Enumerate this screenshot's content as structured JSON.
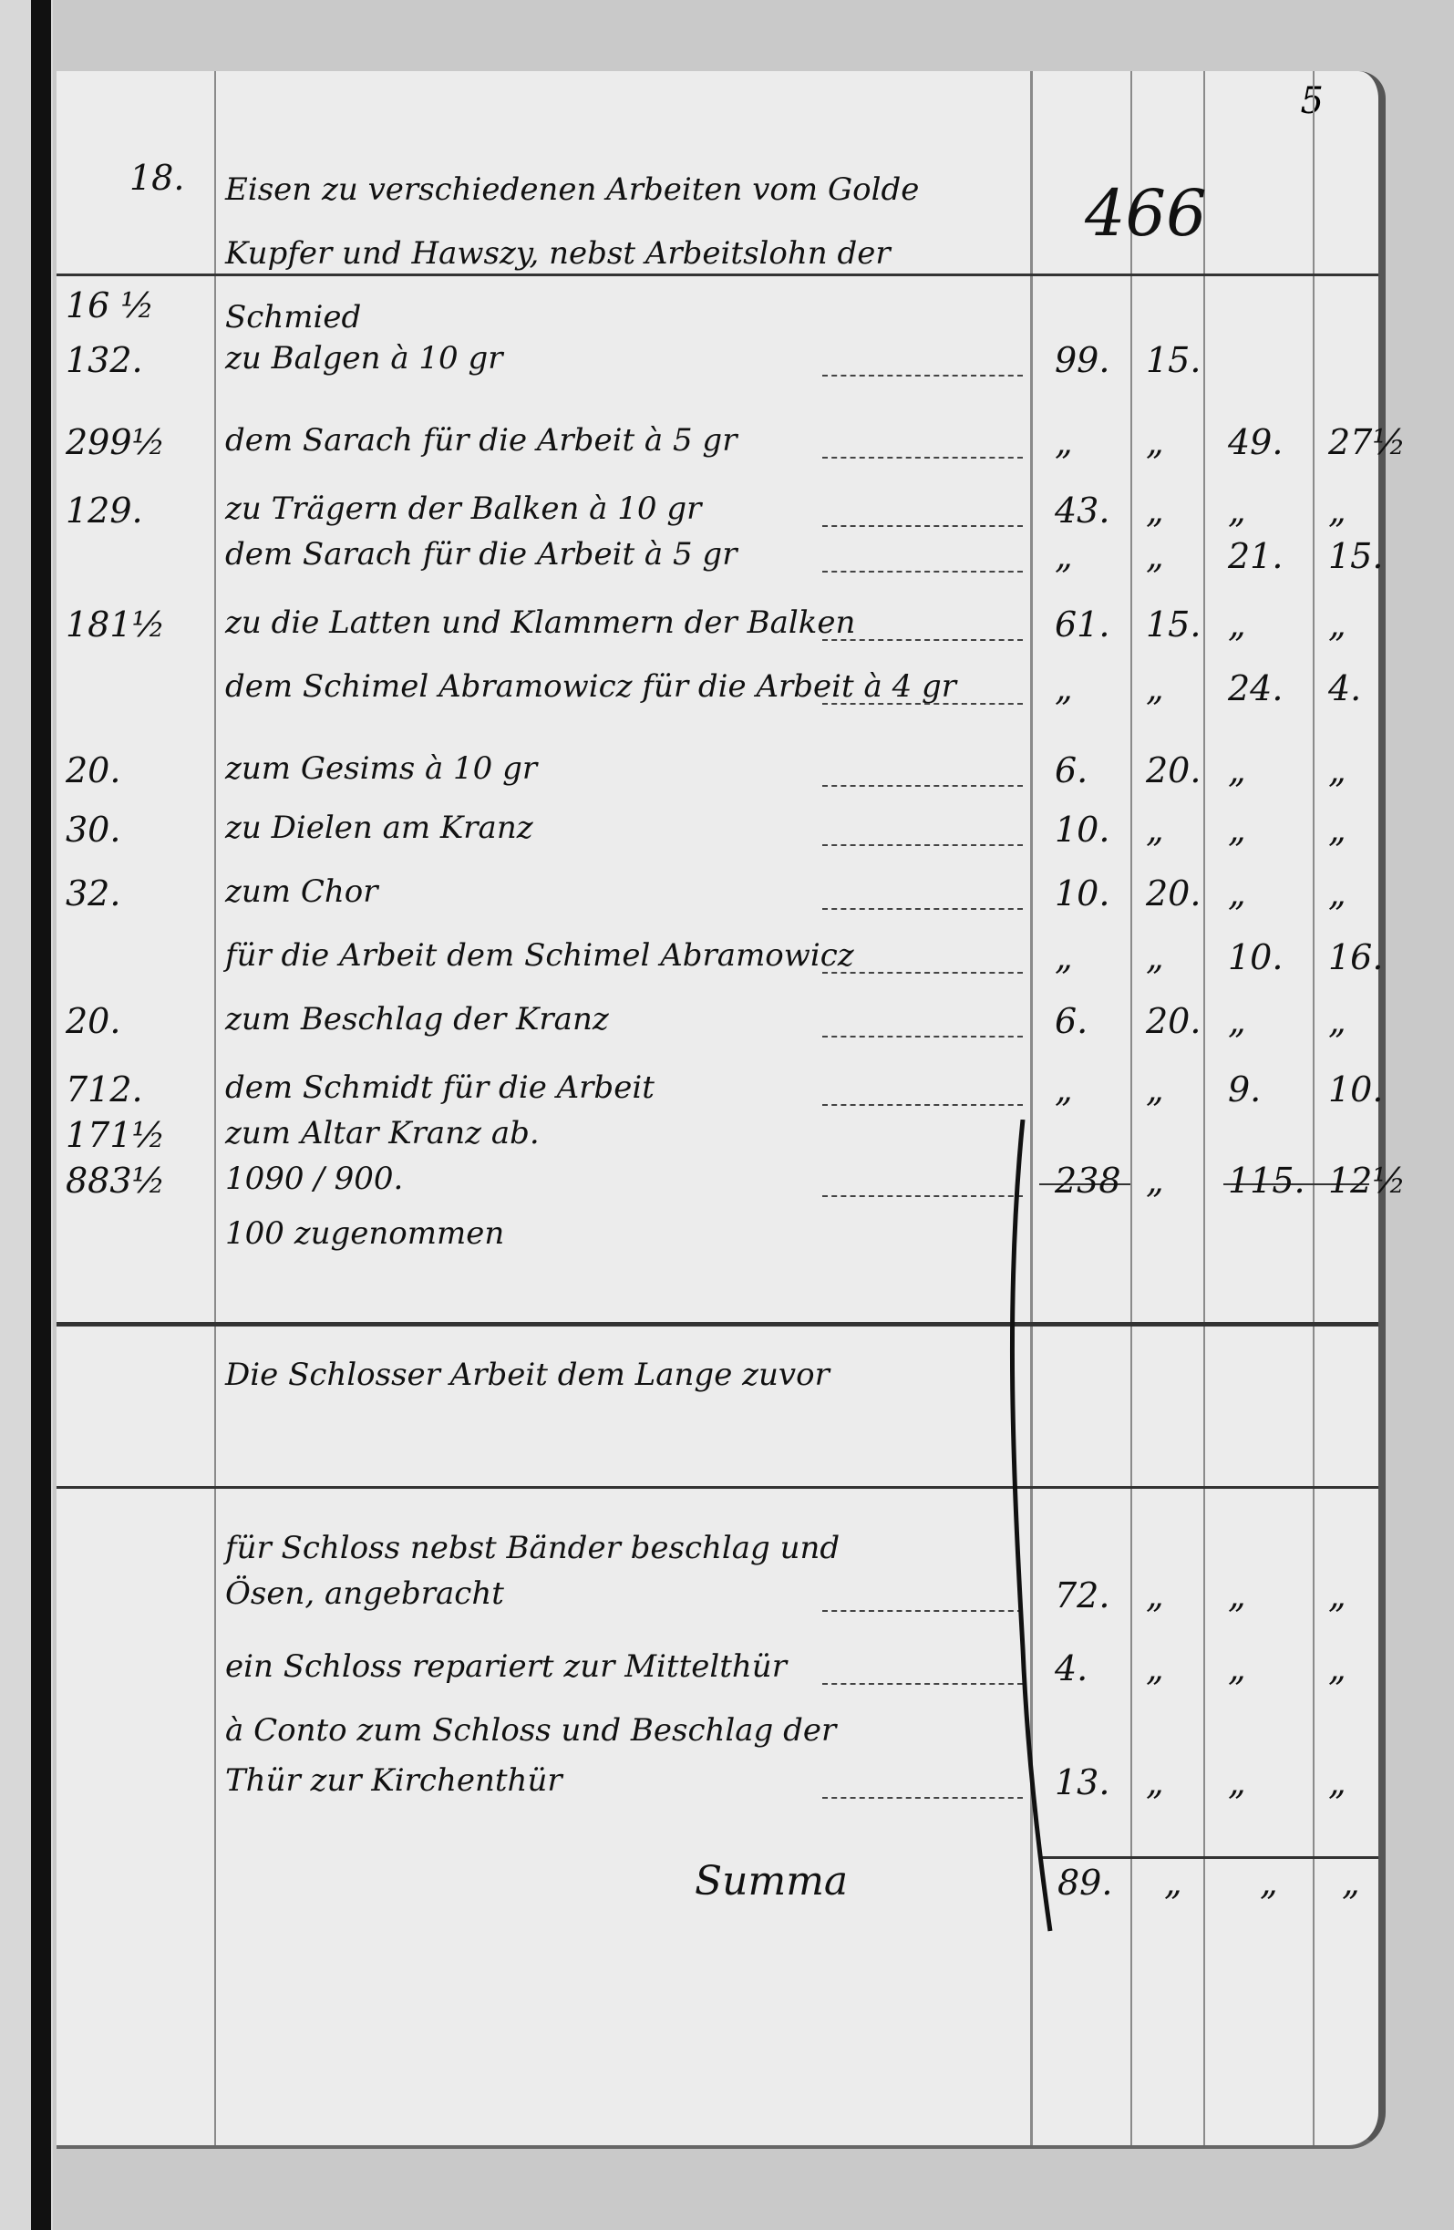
{
  "page_number": "5",
  "header": {
    "qty": "18.",
    "description": "Eisen zu verschiedenen Arbeiten vom Golde Kupfer und Hawszy, nebst Arbeitslohn der Schmied",
    "amount": "466"
  },
  "rows": [
    {
      "qty": "16 ½",
      "desc": "",
      "c1": "",
      "c2": "",
      "c3": "",
      "c4": ""
    },
    {
      "qty": "132.",
      "desc": "zu Balgen à 10 gr",
      "c1": "99.",
      "c2": "15.",
      "c3": "",
      "c4": ""
    },
    {
      "qty": "299½",
      "desc": "dem Sarach für die Arbeit à 5 gr",
      "c1": "„",
      "c2": "„",
      "c3": "49.",
      "c4": "27½"
    },
    {
      "qty": "129.",
      "desc": "zu Trägern der Balken à 10 gr",
      "c1": "43.",
      "c2": "„",
      "c3": "„",
      "c4": "„"
    },
    {
      "qty": "",
      "desc": "dem Sarach für die Arbeit à 5 gr",
      "c1": "„",
      "c2": "„",
      "c3": "21.",
      "c4": "15."
    },
    {
      "qty": "181½",
      "desc": "zu die Latten und Klammern der Balken",
      "c1": "61.",
      "c2": "15.",
      "c3": "„",
      "c4": "„"
    },
    {
      "qty": "",
      "desc": "dem Schimel Abramowicz für die Arbeit à 4 gr",
      "c1": "„",
      "c2": "„",
      "c3": "24.",
      "c4": "4."
    },
    {
      "qty": "20.",
      "desc": "zum Gesims à 10 gr",
      "c1": "6.",
      "c2": "20.",
      "c3": "„",
      "c4": "„"
    },
    {
      "qty": "30.",
      "desc": "zu Dielen am Kranz",
      "c1": "10.",
      "c2": "„",
      "c3": "„",
      "c4": "„"
    },
    {
      "qty": "32.",
      "desc": "zum Chor",
      "c1": "10.",
      "c2": "20.",
      "c3": "„",
      "c4": "„"
    },
    {
      "qty": "",
      "desc": "für die Arbeit dem Schimel Abramowicz",
      "c1": "„",
      "c2": "„",
      "c3": "10.",
      "c4": "16."
    },
    {
      "qty": "20.",
      "desc": "zum Beschlag der Kranz",
      "c1": "6.",
      "c2": "20.",
      "c3": "„",
      "c4": "„"
    },
    {
      "qty": "712.",
      "desc": "dem Schmidt für die Arbeit",
      "c1": "„",
      "c2": "„",
      "c3": "9.",
      "c4": "10."
    },
    {
      "qty": "171½",
      "desc": "zum Altar Kranz ab.",
      "c1": "",
      "c2": "",
      "c3": "",
      "c4": ""
    },
    {
      "qty": "883½",
      "desc": "1090 / 900.",
      "c1": "238",
      "c2": "„",
      "c3": "115.",
      "c4": "12½"
    },
    {
      "qty": "",
      "desc": "100 zugenommen",
      "c1": "",
      "c2": "",
      "c3": "",
      "c4": ""
    }
  ],
  "section2": {
    "title": "Die Schlosser Arbeit dem Lange zuvor",
    "rows": [
      {
        "desc": "für Schloss nebst Bänder beschlag und",
        "c1": "",
        "c2": "",
        "c3": "",
        "c4": ""
      },
      {
        "desc": "Ösen, angebracht",
        "c1": "72.",
        "c2": "„",
        "c3": "„",
        "c4": "„"
      },
      {
        "desc": "ein Schloss repariert zur Mittelthür",
        "c1": "4.",
        "c2": "„",
        "c3": "„",
        "c4": "„"
      },
      {
        "desc": "à Conto zum Schloss und Beschlag der",
        "c1": "",
        "c2": "",
        "c3": "",
        "c4": ""
      },
      {
        "desc": "Thür zur Kirchenthür",
        "c1": "13.",
        "c2": "„",
        "c3": "„",
        "c4": "„"
      }
    ],
    "summa_label": "Summa",
    "summa": "89.",
    "s2": "„",
    "s3": "„",
    "s4": "„"
  }
}
